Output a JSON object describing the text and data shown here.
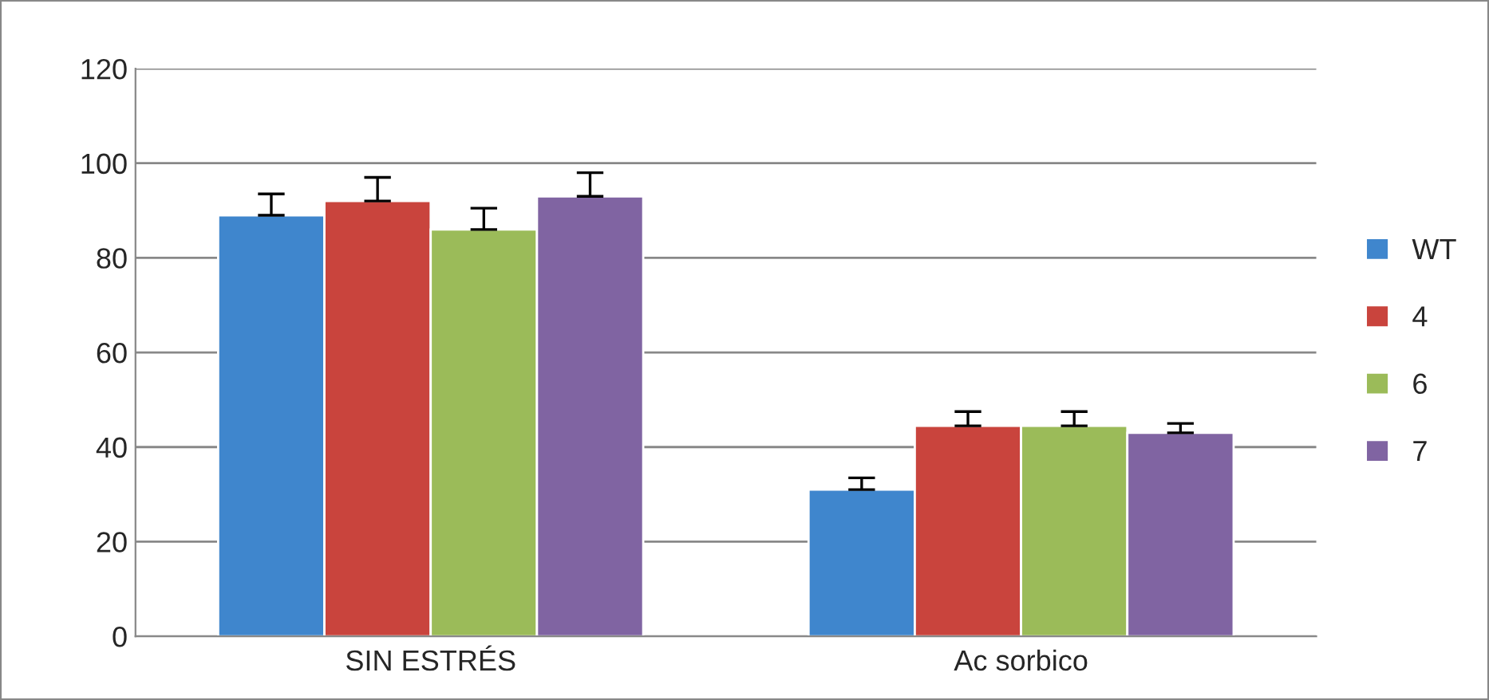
{
  "chart_data": {
    "type": "bar",
    "categories": [
      "SIN ESTRÉS",
      "Ac sorbico"
    ],
    "series": [
      {
        "name": "WT",
        "color": "#3f86cd",
        "values": [
          89,
          31
        ],
        "errors": [
          [
            89,
            93.5
          ],
          [
            31,
            33.5
          ]
        ]
      },
      {
        "name": "4",
        "color": "#c9443d",
        "values": [
          92,
          44.5
        ],
        "errors": [
          [
            92,
            97
          ],
          [
            44.5,
            47.5
          ]
        ]
      },
      {
        "name": "6",
        "color": "#9bbb59",
        "values": [
          86,
          44.5
        ],
        "errors": [
          [
            86,
            90.5
          ],
          [
            44.5,
            47.5
          ]
        ]
      },
      {
        "name": "7",
        "color": "#8064a2",
        "values": [
          93,
          43
        ],
        "errors": [
          [
            93,
            98
          ],
          [
            43,
            45
          ]
        ]
      }
    ],
    "ylim": [
      0,
      120
    ],
    "yticks": [
      0,
      20,
      40,
      60,
      80,
      100,
      120
    ],
    "grid": "y",
    "legend": "right"
  }
}
